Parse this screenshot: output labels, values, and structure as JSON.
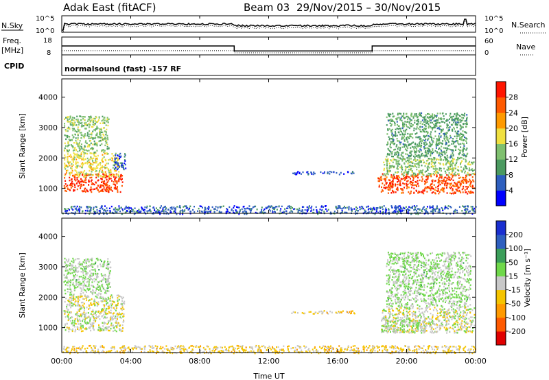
{
  "header": {
    "station": "Adak East (fitACF)",
    "beam": "Beam 03",
    "dates": "29/Nov/2015 – 30/Nov/2015"
  },
  "param_labels": {
    "nsky": "N.Sky",
    "freq": "Freq.",
    "freq_unit": "[MHz]",
    "cpid": "CPID",
    "nsearch": "N.Search",
    "nave": "Nave",
    "cpid_name": "normalsound (fast) -157 RF"
  },
  "param_ticks": {
    "noise_left": [
      "10^5",
      "10^0"
    ],
    "noise_right": [
      "10^5",
      "10^0"
    ],
    "freq_left": [
      "18",
      "8"
    ],
    "nave_right": [
      "60",
      "0"
    ]
  },
  "x_ticks": [
    "00:00",
    "04:00",
    "08:00",
    "12:00",
    "16:00",
    "20:00",
    "00:00"
  ],
  "x_label": "Time UT",
  "chart_data": [
    {
      "type": "heatmap",
      "name": "power",
      "ylabel": "Slant Range [km]",
      "ylim": [
        180,
        4600
      ],
      "xlim_hours": [
        0,
        24
      ],
      "y_ticks": [
        "1000",
        "2000",
        "3000",
        "4000"
      ],
      "colorbar": {
        "label": "Power [dB]",
        "ticks": [
          "28",
          "24",
          "20",
          "16",
          "12",
          "8",
          "4"
        ],
        "range": [
          0,
          32
        ],
        "colors": [
          "#0000ff",
          "#2e5fbf",
          "#4b9a60",
          "#7fc06f",
          "#f0e040",
          "#ff9a00",
          "#ff5a00",
          "#ff1500"
        ]
      },
      "regions": [
        {
          "t0": 0.1,
          "t1": 3.5,
          "r0": 900,
          "r1": 1500,
          "level": 28
        },
        {
          "t0": 0.1,
          "t1": 3.3,
          "r0": 1400,
          "r1": 2200,
          "level": 18
        },
        {
          "t0": 0.1,
          "t1": 2.7,
          "r0": 2200,
          "r1": 3400,
          "level": 14
        },
        {
          "t0": 3.0,
          "t1": 3.7,
          "r0": 1600,
          "r1": 2200,
          "level": 6
        },
        {
          "t0": 13.3,
          "t1": 17.1,
          "r0": 1480,
          "r1": 1580,
          "level": 5
        },
        {
          "t0": 18.3,
          "t1": 23.9,
          "r0": 850,
          "r1": 1500,
          "level": 27
        },
        {
          "t0": 18.6,
          "t1": 23.9,
          "r0": 1450,
          "r1": 2000,
          "level": 14
        },
        {
          "t0": 18.8,
          "t1": 23.5,
          "r0": 2000,
          "r1": 3500,
          "level": 11
        },
        {
          "t0": 0.0,
          "t1": 24.0,
          "r0": 180,
          "r1": 450,
          "level": 6
        }
      ]
    },
    {
      "type": "heatmap",
      "name": "velocity",
      "ylabel": "Slant Range [km]",
      "ylim": [
        180,
        4600
      ],
      "xlim_hours": [
        0,
        24
      ],
      "y_ticks": [
        "1000",
        "2000",
        "3000",
        "4000"
      ],
      "colorbar": {
        "label": "Velocity [m s⁻¹]",
        "ticks": [
          "200",
          "100",
          "50",
          "15",
          "-15",
          "-50",
          "-100",
          "-200"
        ],
        "range": [
          -250,
          250
        ],
        "colors": [
          "#e00000",
          "#ff5a00",
          "#ff9a00",
          "#f5c400",
          "#c8c8c8",
          "#6fd84a",
          "#3b9e5a",
          "#2e5fbf",
          "#1a2fd0"
        ]
      },
      "regions": [
        {
          "t0": 0.1,
          "t1": 3.6,
          "r0": 900,
          "r1": 2100,
          "level": 0
        },
        {
          "t0": 0.1,
          "t1": 2.8,
          "r0": 2100,
          "r1": 3300,
          "level": 30
        },
        {
          "t0": 13.3,
          "t1": 17.1,
          "r0": 1480,
          "r1": 1580,
          "level": -40
        },
        {
          "t0": 18.5,
          "t1": 23.9,
          "r0": 850,
          "r1": 1700,
          "level": 0
        },
        {
          "t0": 18.5,
          "t1": 21.0,
          "r0": 850,
          "r1": 1300,
          "level": 25
        },
        {
          "t0": 18.8,
          "t1": 23.7,
          "r0": 1700,
          "r1": 3500,
          "level": 30
        },
        {
          "t0": 0.0,
          "t1": 24.0,
          "r0": 180,
          "r1": 430,
          "level": -40
        }
      ]
    },
    {
      "type": "line",
      "name": "frequency",
      "x_hours": [
        0,
        10.0,
        10.0,
        18.0,
        18.0,
        24
      ],
      "y_mhz": [
        13,
        13,
        10.2,
        10.2,
        13,
        13
      ]
    }
  ]
}
